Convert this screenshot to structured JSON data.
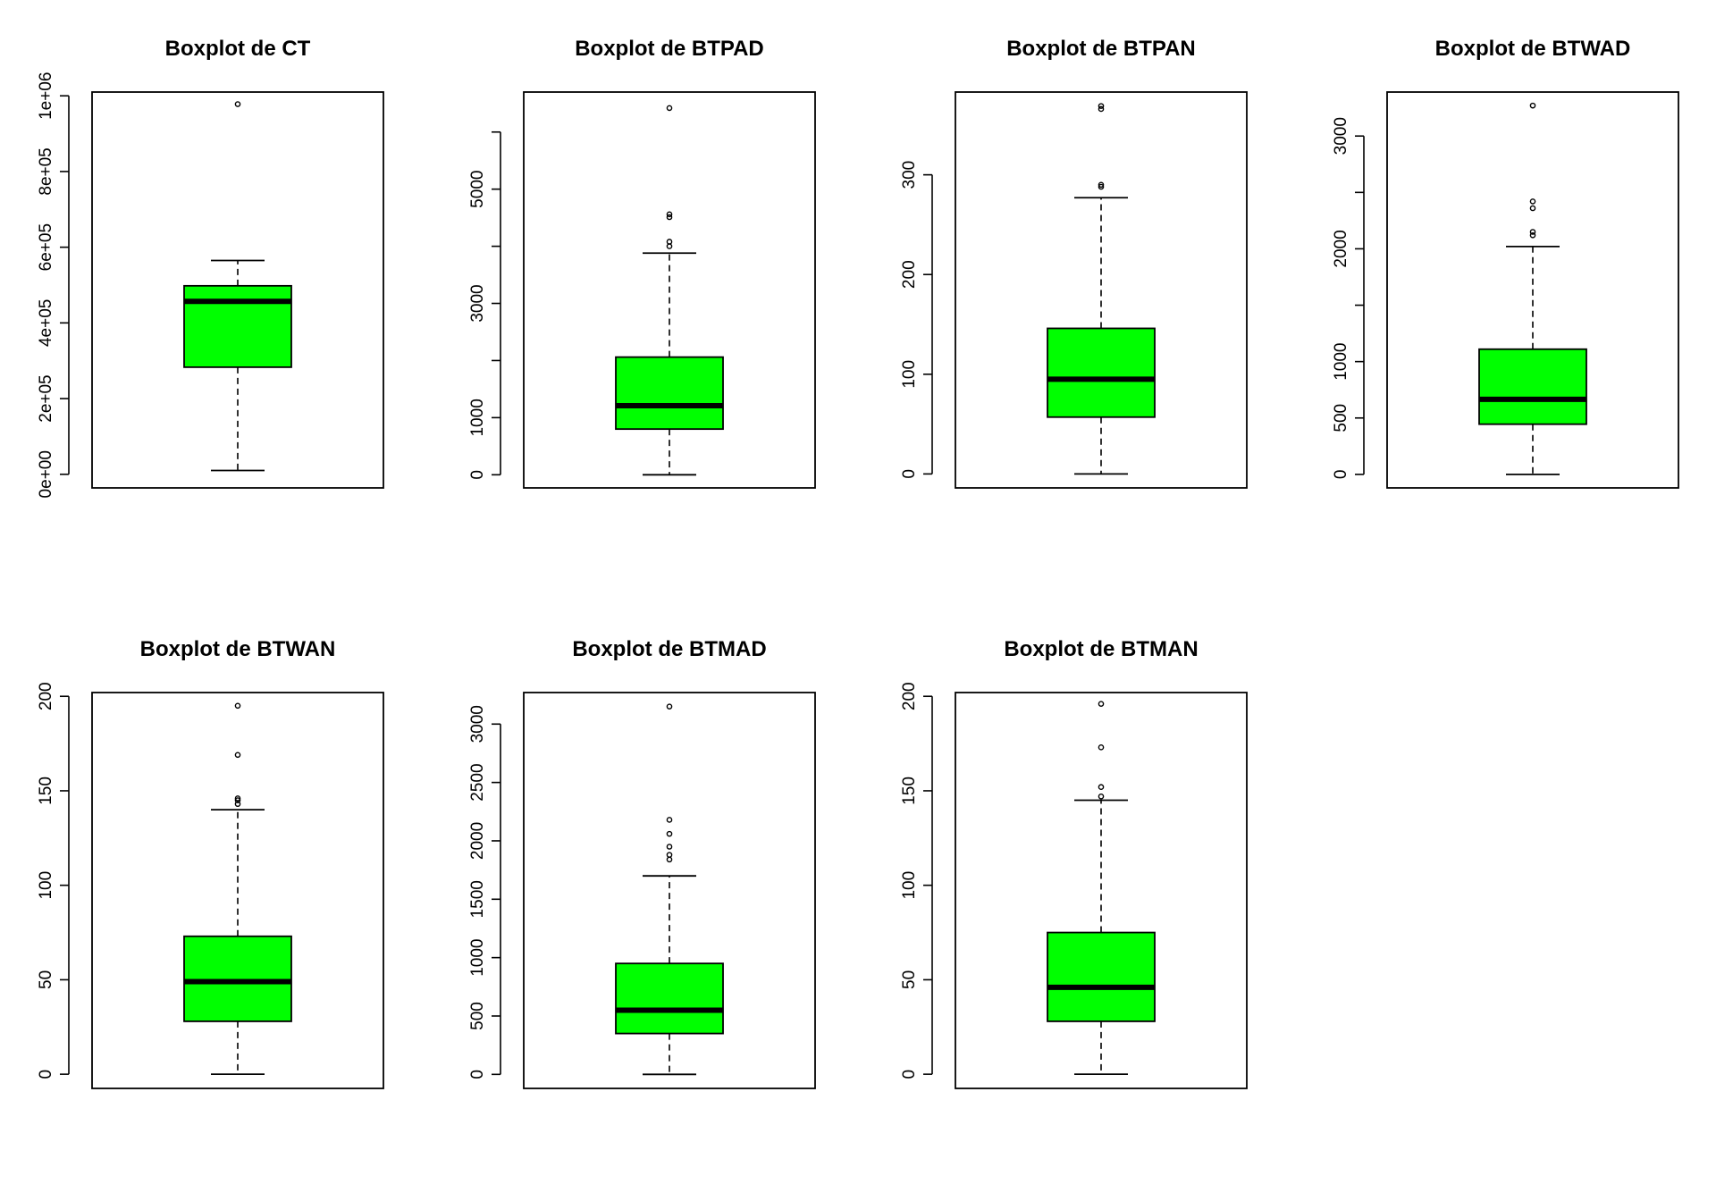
{
  "colors": {
    "box_fill": "#00ff00",
    "stroke": "#000000",
    "background": "#ffffff"
  },
  "chart_data": [
    {
      "type": "boxplot",
      "title": "Boxplot de CT",
      "yticks": [
        0,
        200000,
        400000,
        600000,
        800000,
        1000000
      ],
      "ytick_labels": [
        "0e+00",
        "2e+05",
        "4e+05",
        "6e+05",
        "8e+05",
        "1e+06"
      ],
      "ylim": [
        -36000,
        1010000
      ],
      "box": {
        "whisker_low": 10000,
        "q1": 283000,
        "median": 457000,
        "q3": 498000,
        "whisker_high": 565000
      },
      "outliers": [
        978000
      ],
      "grid": false
    },
    {
      "type": "boxplot",
      "title": "Boxplot de BTPAD",
      "yticks": [
        0,
        1000,
        2000,
        3000,
        4000,
        5000,
        6000
      ],
      "ytick_labels": [
        "0",
        "1000",
        "",
        "3000",
        "",
        "5000",
        ""
      ],
      "ylim": [
        -230,
        6700
      ],
      "box": {
        "whisker_low": 0,
        "q1": 800,
        "median": 1210,
        "q3": 2060,
        "whisker_high": 3880
      },
      "outliers": [
        4000,
        4080,
        4510,
        4560,
        6420
      ],
      "grid": false
    },
    {
      "type": "boxplot",
      "title": "Boxplot de BTPAN",
      "yticks": [
        0,
        100,
        200,
        300
      ],
      "ytick_labels": [
        "0",
        "100",
        "200",
        "300"
      ],
      "ylim": [
        -14,
        383
      ],
      "box": {
        "whisker_low": 0,
        "q1": 57,
        "median": 95,
        "q3": 146,
        "whisker_high": 277
      },
      "outliers": [
        288,
        290,
        366,
        369
      ],
      "grid": false
    },
    {
      "type": "boxplot",
      "title": "Boxplot de BTWAD",
      "yticks": [
        0,
        500,
        1000,
        1500,
        2000,
        2500,
        3000
      ],
      "ytick_labels": [
        "0",
        "500",
        "1000",
        "",
        "2000",
        "",
        "3000"
      ],
      "ylim": [
        -120,
        3390
      ],
      "box": {
        "whisker_low": 0,
        "q1": 445,
        "median": 665,
        "q3": 1110,
        "whisker_high": 2020
      },
      "outliers": [
        2120,
        2150,
        2360,
        2420,
        3270
      ],
      "grid": false
    },
    {
      "type": "boxplot",
      "title": "Boxplot de BTWAN",
      "yticks": [
        0,
        50,
        100,
        150,
        200
      ],
      "ytick_labels": [
        "0",
        "50",
        "100",
        "150",
        "200"
      ],
      "ylim": [
        -7.5,
        202
      ],
      "box": {
        "whisker_low": 0,
        "q1": 28,
        "median": 49,
        "q3": 73,
        "whisker_high": 140
      },
      "outliers": [
        143,
        145,
        146,
        169,
        195
      ],
      "grid": false
    },
    {
      "type": "boxplot",
      "title": "Boxplot de BTMAD",
      "yticks": [
        0,
        500,
        1000,
        1500,
        2000,
        2500,
        3000
      ],
      "ytick_labels": [
        "0",
        "500",
        "1000",
        "1500",
        "2000",
        "2500",
        "3000"
      ],
      "ylim": [
        -120,
        3270
      ],
      "box": {
        "whisker_low": 0,
        "q1": 350,
        "median": 550,
        "q3": 950,
        "whisker_high": 1700
      },
      "outliers": [
        1840,
        1880,
        1950,
        2060,
        2180,
        3150
      ],
      "grid": false
    },
    {
      "type": "boxplot",
      "title": "Boxplot de BTMAN",
      "yticks": [
        0,
        50,
        100,
        150,
        200
      ],
      "ytick_labels": [
        "0",
        "50",
        "100",
        "150",
        "200"
      ],
      "ylim": [
        -7.5,
        202
      ],
      "box": {
        "whisker_low": 0,
        "q1": 28,
        "median": 46,
        "q3": 75,
        "whisker_high": 145
      },
      "outliers": [
        147,
        152,
        173,
        196
      ],
      "grid": false
    }
  ]
}
